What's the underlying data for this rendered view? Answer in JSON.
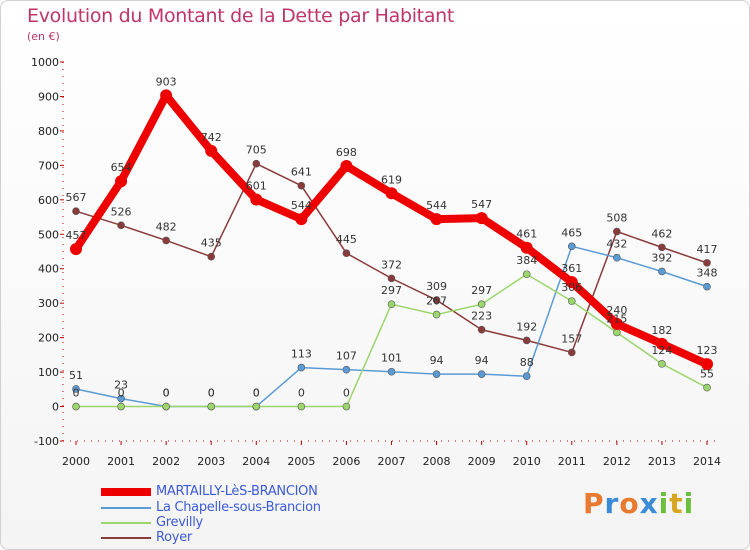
{
  "header": {
    "title": "Evolution du Montant de la Dette par Habitant",
    "subtitle": "(en €)"
  },
  "logo": {
    "text": "Proxiti",
    "colors": [
      "#e8792e",
      "#3b8bd6",
      "#e8792e",
      "#3b8bd6",
      "#6cbf3c",
      "#d8a51f",
      "#6cbf3c"
    ]
  },
  "chart_data": {
    "type": "line",
    "title": "Evolution du Montant de la Dette par Habitant",
    "subtitle": "(en €)",
    "x": [
      2000,
      2001,
      2002,
      2003,
      2004,
      2005,
      2006,
      2007,
      2008,
      2009,
      2010,
      2011,
      2012,
      2013,
      2014
    ],
    "ylim": [
      -100,
      1000
    ],
    "yticks": [
      -100,
      0,
      100,
      200,
      300,
      400,
      500,
      600,
      700,
      800,
      900,
      1000
    ],
    "grid": false,
    "legend_position": "bottom-left",
    "series": [
      {
        "name": "MARTAILLY-LèS-BRANCION",
        "color": "#ee0000",
        "values": [
          457,
          654,
          903,
          742,
          601,
          544,
          698,
          619,
          544,
          547,
          461,
          361,
          240,
          182,
          123
        ],
        "labels": [
          "457",
          "654",
          "903",
          "742",
          "601",
          "544",
          "698",
          "619",
          "544",
          "547",
          "461",
          "361",
          "240",
          "182",
          "123"
        ]
      },
      {
        "name": "La Chapelle-sous-Brancion",
        "color": "#5b9bd5",
        "values": [
          51,
          23,
          0,
          0,
          0,
          113,
          107,
          101,
          94,
          94,
          88,
          465,
          432,
          392,
          348
        ],
        "labels": [
          "51",
          "23",
          "0",
          "0",
          "0",
          "113",
          "107",
          "101",
          "94",
          "94",
          "88",
          "465",
          "432",
          "392",
          "348"
        ]
      },
      {
        "name": "Grevilly",
        "color": "#9ad66b",
        "values": [
          0,
          0,
          0,
          0,
          0,
          0,
          0,
          297,
          267,
          297,
          384,
          306,
          215,
          124,
          55
        ],
        "labels": [
          "0",
          "0",
          "0",
          "0",
          "0",
          "0",
          "0",
          "297",
          "267",
          "297",
          "384",
          "306",
          "215",
          "124",
          "55"
        ]
      },
      {
        "name": "Royer",
        "color": "#8b3a3a",
        "values": [
          567,
          526,
          482,
          435,
          705,
          641,
          445,
          372,
          309,
          223,
          192,
          157,
          508,
          462,
          417
        ],
        "labels": [
          "567",
          "526",
          "482",
          "435",
          "705",
          "641",
          "445",
          "372",
          "309",
          "223",
          "192",
          "157",
          "508",
          "462",
          "417"
        ]
      }
    ]
  }
}
